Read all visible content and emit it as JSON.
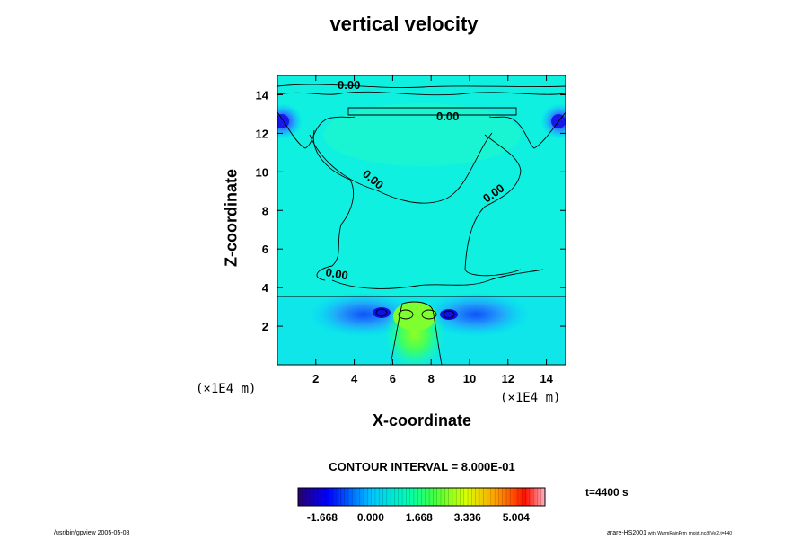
{
  "chart_data": {
    "type": "heatmap",
    "title": "vertical velocity",
    "xlabel": "X-coordinate",
    "ylabel": "Z-coordinate",
    "x_unit": "(×1E4 m)",
    "z_unit": "(×1E4 m)",
    "xlim": [
      0,
      15
    ],
    "ylim": [
      0,
      15
    ],
    "x_ticks": [
      2,
      4,
      6,
      8,
      10,
      12,
      14
    ],
    "y_ticks": [
      2,
      4,
      6,
      8,
      10,
      12,
      14
    ],
    "contour_label": "0.00",
    "contour_interval_text": "CONTOUR INTERVAL = 8.000E-01",
    "colorbar_ticks": [
      "-1.668",
      "0.000",
      "1.668",
      "3.336",
      "5.004"
    ],
    "colorbar_range": [
      -2.5,
      6.0
    ],
    "time_label": "t=4400 s",
    "features": [
      {
        "name": "updraft-core",
        "x": 7.0,
        "z": 2.8,
        "value": 1.6
      },
      {
        "name": "downdraft-left",
        "x": 5.4,
        "z": 2.8,
        "value": -1.5
      },
      {
        "name": "downdraft-right",
        "x": 9.0,
        "z": 2.8,
        "value": -1.4
      },
      {
        "name": "downdraft-upper-left",
        "x": 0.2,
        "z": 12.6,
        "value": -1.3
      },
      {
        "name": "downdraft-upper-right",
        "x": 14.8,
        "z": 12.6,
        "value": -1.3
      }
    ]
  },
  "footer": {
    "left": "/usr/bin/gpview 2005-05-08",
    "right_main": "arare-HS2001",
    "right_small": "with WarmRainPrm_moist.nc@Vel2,t=440"
  }
}
